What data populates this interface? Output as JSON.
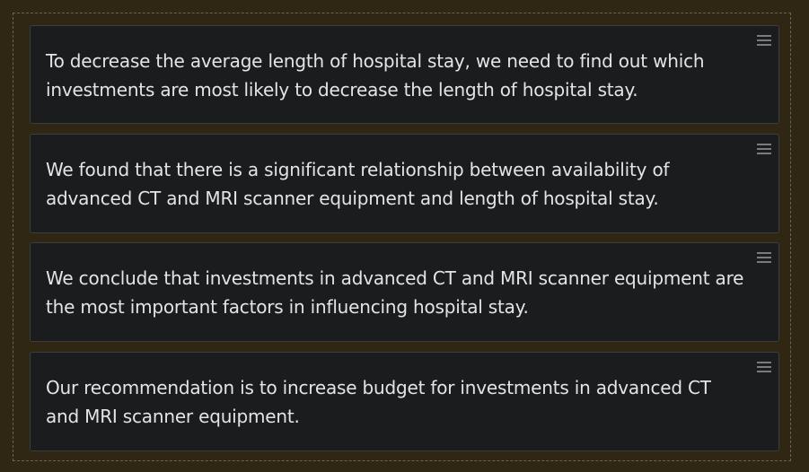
{
  "cards": [
    {
      "text": "To decrease the average length of hospital stay, we need to find out which investments are most likely to decrease the length of hospital stay.",
      "handle_icon": "drag-handle-icon"
    },
    {
      "text": "We found that there is a significant relationship between availability of advanced CT and MRI scanner equipment and length of hospital stay.",
      "handle_icon": "drag-handle-icon"
    },
    {
      "text": "We conclude that investments in advanced CT and MRI scanner equipment are the most important factors in influencing hospital stay.",
      "handle_icon": "drag-handle-icon"
    },
    {
      "text": "Our recommendation is to increase budget for investments in advanced CT and MRI scanner equipment.",
      "handle_icon": "drag-handle-icon"
    }
  ],
  "colors": {
    "background": "#2f2613",
    "card_background": "#1b1c1e",
    "card_border": "#3c3d40",
    "text": "#e4e4e4",
    "handle": "#7a7b7d",
    "drop_zone_border": "#6e6547"
  }
}
